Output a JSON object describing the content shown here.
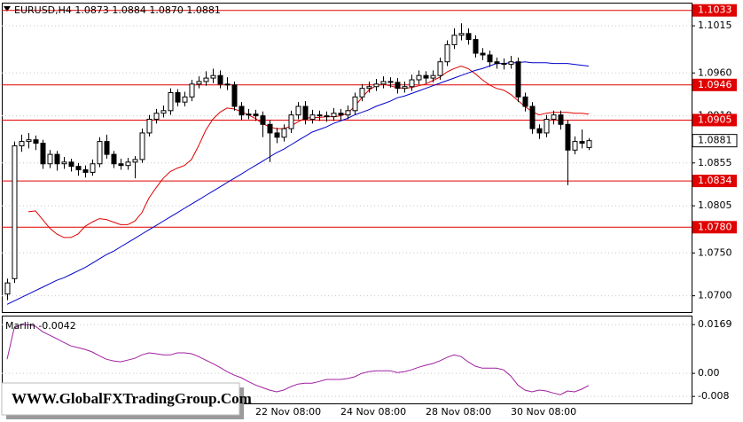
{
  "chart_data": [
    {
      "type": "candlestick",
      "title": "EURUSD,H4  1.0873 1.0884 1.0870 1.0881",
      "categories": [
        null,
        null,
        null,
        null,
        null,
        null,
        null,
        null,
        null,
        null,
        null,
        null,
        null,
        null,
        null,
        null,
        null,
        null,
        null,
        null,
        null,
        null,
        null,
        null,
        null,
        null,
        null,
        null,
        null,
        null,
        null,
        null,
        null,
        null,
        null,
        "22 Nov 08:00",
        null,
        null,
        null,
        null,
        null,
        null,
        null,
        null,
        null,
        null,
        null,
        "24 Nov 08:00",
        null,
        null,
        null,
        null,
        null,
        null,
        null,
        null,
        null,
        null,
        null,
        "28 Nov 08:00",
        null,
        null,
        null,
        null,
        null,
        null,
        null,
        null,
        null,
        null,
        null,
        "30 Nov 08:00",
        null,
        null,
        null,
        null,
        null,
        null,
        null,
        null,
        null,
        null,
        null
      ],
      "open": [
        1.0702,
        1.072,
        1.0875,
        1.088,
        1.0882,
        1.0878,
        1.0854,
        1.0865,
        1.0854,
        1.0856,
        1.0851,
        1.0847,
        1.0844,
        1.0854,
        1.088,
        1.0865,
        1.0854,
        1.0852,
        1.0856,
        1.0859,
        1.089,
        1.0906,
        1.0913,
        1.0916,
        1.0937,
        1.0926,
        1.0932,
        1.0947,
        1.095,
        1.0954,
        1.0957,
        1.0947,
        1.0946,
        1.0921,
        1.0911,
        1.0912,
        1.091,
        1.09,
        1.089,
        1.0885,
        1.0895,
        1.0911,
        1.0921,
        1.0906,
        1.0911,
        1.091,
        1.0909,
        1.0913,
        1.0911,
        1.0916,
        1.0932,
        1.0942,
        1.0944,
        1.0947,
        1.095,
        1.0949,
        1.0942,
        1.0944,
        1.0952,
        1.0957,
        1.0954,
        1.0957,
        1.0973,
        1.0993,
        1.1004,
        1.1006,
        1.0999,
        1.0983,
        1.0981,
        1.0973,
        1.0971,
        1.097,
        1.0973,
        1.0932,
        1.0921,
        1.0895,
        1.089,
        1.0906,
        1.0911,
        1.09,
        1.087,
        1.088,
        1.0873
      ],
      "high": [
        1.072,
        1.088,
        1.0888,
        1.089,
        1.0887,
        1.0882,
        1.087,
        1.0869,
        1.0862,
        1.086,
        1.0855,
        1.0852,
        1.0859,
        1.0885,
        1.0888,
        1.0869,
        1.086,
        1.0861,
        1.0863,
        1.0895,
        1.0911,
        1.0918,
        1.0922,
        1.0942,
        1.0941,
        1.0938,
        1.0952,
        1.0956,
        1.0962,
        1.0965,
        1.0963,
        1.0955,
        1.095,
        1.0926,
        1.0918,
        1.0917,
        1.0915,
        1.0905,
        1.0896,
        1.09,
        1.0916,
        1.0926,
        1.0927,
        1.0917,
        1.0916,
        1.0915,
        1.0919,
        1.0918,
        1.0922,
        1.0937,
        1.0947,
        1.095,
        1.0953,
        1.0956,
        1.0955,
        1.0954,
        1.095,
        1.0958,
        1.0963,
        1.0962,
        1.0963,
        1.0978,
        1.0998,
        1.1012,
        1.1018,
        1.1012,
        1.1004,
        1.0989,
        1.0986,
        1.0978,
        1.0977,
        1.098,
        1.0978,
        1.0937,
        1.0926,
        1.09,
        1.0911,
        1.0916,
        1.0916,
        1.0905,
        1.0886,
        1.0894,
        1.0884
      ],
      "low": [
        1.0695,
        1.0715,
        1.0868,
        1.0872,
        1.087,
        1.0848,
        1.0849,
        1.0846,
        1.0848,
        1.0845,
        1.084,
        1.0838,
        1.084,
        1.085,
        1.086,
        1.0849,
        1.0847,
        1.0847,
        1.0837,
        1.0855,
        1.0886,
        1.0901,
        1.0908,
        1.0911,
        1.0921,
        1.0921,
        1.0927,
        1.0942,
        1.0945,
        1.0948,
        1.0942,
        1.094,
        1.0916,
        1.0905,
        1.0906,
        1.0904,
        1.0885,
        1.0856,
        1.0878,
        1.088,
        1.089,
        1.0906,
        1.09,
        1.0901,
        1.0904,
        1.0903,
        1.0904,
        1.0905,
        1.0906,
        1.0911,
        1.0927,
        1.0937,
        1.0939,
        1.0942,
        1.0943,
        1.0936,
        1.0937,
        1.0939,
        1.0947,
        1.0948,
        1.0949,
        1.0952,
        1.0968,
        1.0988,
        1.0998,
        1.0993,
        1.0978,
        1.0975,
        1.0967,
        1.0965,
        1.0964,
        1.0965,
        1.0926,
        1.0915,
        1.0889,
        1.0883,
        1.0885,
        1.09,
        1.0894,
        1.0829,
        1.0865,
        1.0872,
        1.087
      ],
      "close": [
        1.0715,
        1.0875,
        1.088,
        1.0882,
        1.0878,
        1.0854,
        1.0865,
        1.0854,
        1.0856,
        1.0851,
        1.0847,
        1.0844,
        1.0854,
        1.088,
        1.0865,
        1.0854,
        1.0852,
        1.0856,
        1.0859,
        1.089,
        1.0906,
        1.0913,
        1.0916,
        1.0937,
        1.0926,
        1.0932,
        1.0947,
        1.095,
        1.0954,
        1.0957,
        1.0947,
        1.0946,
        1.0921,
        1.0911,
        1.0912,
        1.091,
        1.09,
        1.089,
        1.0885,
        1.0895,
        1.0911,
        1.0921,
        1.0906,
        1.0911,
        1.091,
        1.0909,
        1.0913,
        1.0911,
        1.0916,
        1.0932,
        1.0942,
        1.0944,
        1.0947,
        1.095,
        1.0949,
        1.0942,
        1.0944,
        1.0952,
        1.0957,
        1.0954,
        1.0957,
        1.0973,
        1.0993,
        1.1004,
        1.1006,
        1.0999,
        1.0983,
        1.0981,
        1.0973,
        1.0971,
        1.097,
        1.0973,
        1.0932,
        1.0921,
        1.0895,
        1.089,
        1.0906,
        1.0911,
        1.09,
        1.087,
        1.088,
        1.0878,
        1.0881
      ],
      "up_color": "#ffffff",
      "down_color": "#000000",
      "wick_color": "#000000",
      "series": [
        {
          "color": "#e00000",
          "values": [
            null,
            null,
            null,
            1.0798,
            1.0799,
            1.0789,
            1.0779,
            1.0772,
            1.0768,
            1.0768,
            1.0772,
            1.0781,
            1.0786,
            1.079,
            1.0789,
            1.0786,
            1.0783,
            1.0783,
            1.0787,
            1.0797,
            1.0814,
            1.0826,
            1.0837,
            1.0845,
            1.0849,
            1.0852,
            1.0859,
            1.0875,
            1.0893,
            1.0906,
            1.0914,
            1.0919,
            1.0918,
            1.0915,
            1.0911,
            1.0907,
            1.0901,
            1.0897,
            1.0895,
            1.0895,
            1.0898,
            1.0903,
            1.0907,
            1.0908,
            1.0908,
            1.0909,
            1.0909,
            1.091,
            1.0913,
            1.0921,
            1.0931,
            1.094,
            1.0945,
            1.0947,
            1.0945,
            1.0943,
            1.0942,
            1.0943,
            1.0945,
            1.0947,
            1.0951,
            1.0955,
            1.0961,
            1.0965,
            1.0968,
            1.0965,
            1.0959,
            1.0952,
            1.0946,
            1.0942,
            1.094,
            1.0935,
            1.0928,
            1.0921,
            1.0915,
            1.0911,
            1.0913,
            1.0914,
            1.0914,
            1.0914,
            1.0913,
            1.0913,
            1.0912
          ]
        },
        {
          "color": "#0000cc",
          "values": [
            1.069,
            1.0694,
            1.0698,
            1.0702,
            1.0706,
            1.071,
            1.0714,
            1.0718,
            1.0721,
            1.0725,
            1.0729,
            1.0733,
            1.0738,
            1.0743,
            1.0748,
            1.0752,
            1.0757,
            1.0762,
            1.0767,
            1.0772,
            1.0777,
            1.0782,
            1.0787,
            1.0792,
            1.0797,
            1.0802,
            1.0807,
            1.0812,
            1.0817,
            1.0822,
            1.0827,
            1.0832,
            1.0837,
            1.0842,
            1.0847,
            1.0852,
            1.0857,
            1.0862,
            1.0867,
            1.0871,
            1.0876,
            1.0881,
            1.0886,
            1.0891,
            1.0894,
            1.0897,
            1.0901,
            1.0904,
            1.0907,
            1.0911,
            1.0914,
            1.0917,
            1.0921,
            1.0924,
            1.0927,
            1.0931,
            1.0933,
            1.0936,
            1.0939,
            1.0942,
            1.0945,
            1.0948,
            1.0951,
            1.0954,
            1.0957,
            1.096,
            1.0963,
            1.0965,
            1.0968,
            1.0971,
            1.0971,
            1.0972,
            1.0972,
            1.0973,
            1.0972,
            1.0972,
            1.0972,
            1.0971,
            1.0971,
            1.0971,
            1.097,
            1.0969,
            1.0968
          ]
        }
      ],
      "levels": [
        1.1033,
        1.0946,
        1.0905,
        1.0834,
        {
          "value": 1.078,
          "label": "1.0780"
        }
      ],
      "level_color": "#e00000",
      "last": 1.0881,
      "ylim": [
        1.0681,
        1.1042
      ],
      "yticks": [
        {
          "value": 1.07,
          "label": "1.0700"
        },
        {
          "value": 1.075,
          "label": "1.0750"
        },
        1.0805,
        1.0855,
        {
          "value": 1.091,
          "label": "1.0910"
        },
        {
          "value": 1.096,
          "label": "1.0960"
        },
        1.1015
      ],
      "grid": true
    },
    {
      "type": "line",
      "title": "Marlin -0.0042",
      "series": [
        {
          "color": "#a020a0",
          "values": [
            0.0049,
            0.0157,
            0.0169,
            0.0169,
            0.0163,
            0.0144,
            0.0132,
            0.012,
            0.0107,
            0.0095,
            0.0089,
            0.0083,
            0.0074,
            0.0061,
            0.0049,
            0.0043,
            0.004,
            0.0046,
            0.0052,
            0.0064,
            0.0071,
            0.0068,
            0.0064,
            0.0064,
            0.0071,
            0.0071,
            0.0068,
            0.0058,
            0.0046,
            0.0034,
            0.0021,
            0.0006,
            -0.0006,
            -0.0015,
            -0.0028,
            -0.004,
            -0.0049,
            -0.0058,
            -0.0064,
            -0.0058,
            -0.0046,
            -0.0037,
            -0.0034,
            -0.0034,
            -0.0028,
            -0.0021,
            -0.0021,
            -0.0021,
            -0.0018,
            -0.0012,
            0,
            0.0006,
            0.0009,
            0.0009,
            0.0009,
            0.0003,
            0.0006,
            0.0012,
            0.0021,
            0.0028,
            0.0034,
            0.0043,
            0.0055,
            0.0064,
            0.0058,
            0.004,
            0.0025,
            0.0018,
            0.0018,
            0.0018,
            0.0012,
            -0.0009,
            -0.004,
            -0.0058,
            -0.0064,
            -0.0058,
            -0.0061,
            -0.0068,
            -0.0074,
            -0.0061,
            -0.0064,
            -0.0055,
            -0.0042
          ]
        }
      ],
      "ylim": [
        -0.0104,
        0.02
      ],
      "yticks": [
        0.0169,
        {
          "value": 0,
          "label": "0.00"
        },
        -0.008
      ],
      "grid": true
    }
  ],
  "watermark": "WWW.GlobalFXTradingGroup.Com"
}
